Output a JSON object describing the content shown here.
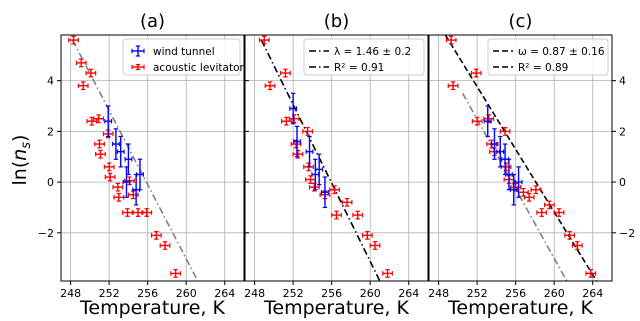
{
  "chart_data": [
    {
      "type": "scatter",
      "title": "(a)",
      "xlabel": "Temperature, K",
      "ylabel": "ln(n_s)",
      "xlim": [
        247,
        266
      ],
      "ylim": [
        -3.9,
        5.8
      ],
      "x_ticks": [
        "248",
        "252",
        "256",
        "260",
        "264"
      ],
      "y_ticks": [
        "4",
        "2",
        "0",
        "−2"
      ],
      "grid": true,
      "legend": {
        "position": "top-right",
        "entries": [
          "wind tunnel",
          "acoustic levitator"
        ]
      },
      "series": [
        {
          "name": "wind tunnel",
          "color": "#0000ff",
          "points": [
            {
              "x": 251.9,
              "y": 2.4,
              "xerr": 0.35,
              "yerr": 0.6
            },
            {
              "x": 252.7,
              "y": 1.5,
              "xerr": 0.35,
              "yerr": 0.6
            },
            {
              "x": 253.2,
              "y": 1.2,
              "xerr": 0.35,
              "yerr": 0.6
            },
            {
              "x": 253.8,
              "y": 0.0,
              "xerr": 0.35,
              "yerr": 0.6
            },
            {
              "x": 254.0,
              "y": 0.9,
              "xerr": 0.35,
              "yerr": 0.6
            },
            {
              "x": 254.8,
              "y": -0.3,
              "xerr": 0.35,
              "yerr": 0.6
            },
            {
              "x": 255.2,
              "y": 0.3,
              "xerr": 0.35,
              "yerr": 0.6
            }
          ]
        },
        {
          "name": "acoustic levitator",
          "color": "#ff0000",
          "points": [
            {
              "x": 248.3,
              "y": 5.6,
              "xerr": 0.5,
              "yerr": 0.15
            },
            {
              "x": 249.1,
              "y": 4.7,
              "xerr": 0.5,
              "yerr": 0.15
            },
            {
              "x": 249.3,
              "y": 3.8,
              "xerr": 0.5,
              "yerr": 0.15
            },
            {
              "x": 250.1,
              "y": 4.3,
              "xerr": 0.5,
              "yerr": 0.15
            },
            {
              "x": 250.2,
              "y": 2.4,
              "xerr": 0.5,
              "yerr": 0.15
            },
            {
              "x": 250.9,
              "y": 2.5,
              "xerr": 0.5,
              "yerr": 0.15
            },
            {
              "x": 251.0,
              "y": 1.5,
              "xerr": 0.5,
              "yerr": 0.15
            },
            {
              "x": 251.1,
              "y": 1.1,
              "xerr": 0.5,
              "yerr": 0.15
            },
            {
              "x": 251.9,
              "y": 1.9,
              "xerr": 0.5,
              "yerr": 0.15
            },
            {
              "x": 252.0,
              "y": 0.6,
              "xerr": 0.5,
              "yerr": 0.15
            },
            {
              "x": 252.1,
              "y": 0.2,
              "xerr": 0.5,
              "yerr": 0.15
            },
            {
              "x": 252.9,
              "y": -0.2,
              "xerr": 0.5,
              "yerr": 0.15
            },
            {
              "x": 253.0,
              "y": -0.6,
              "xerr": 0.5,
              "yerr": 0.15
            },
            {
              "x": 253.9,
              "y": -1.2,
              "xerr": 0.5,
              "yerr": 0.15
            },
            {
              "x": 254.1,
              "y": 0.05,
              "xerr": 0.5,
              "yerr": 0.15
            },
            {
              "x": 254.5,
              "y": -0.5,
              "xerr": 0.5,
              "yerr": 0.15
            },
            {
              "x": 255.0,
              "y": -1.2,
              "xerr": 0.5,
              "yerr": 0.15
            },
            {
              "x": 255.9,
              "y": -1.2,
              "xerr": 0.5,
              "yerr": 0.15
            },
            {
              "x": 256.9,
              "y": -2.1,
              "xerr": 0.5,
              "yerr": 0.15
            },
            {
              "x": 257.8,
              "y": -2.5,
              "xerr": 0.5,
              "yerr": 0.15
            },
            {
              "x": 258.9,
              "y": -3.6,
              "xerr": 0.5,
              "yerr": 0.15
            }
          ]
        }
      ],
      "lines": [
        {
          "style": "dash-dot",
          "color": "#808080",
          "x": [
            248.2,
            261.2
          ],
          "y": [
            5.6,
            -3.9
          ]
        }
      ]
    },
    {
      "type": "scatter",
      "title": "(b)",
      "xlabel": "Temperature, K",
      "xlim": [
        247,
        266
      ],
      "ylim": [
        -3.9,
        5.8
      ],
      "x_ticks": [
        "248",
        "252",
        "256",
        "260",
        "264"
      ],
      "grid": true,
      "legend": {
        "position": "top-right",
        "entries": [
          "λ = 1.46 ± 0.2",
          "R² = 0.91"
        ]
      },
      "series": [
        {
          "color": "#0000ff",
          "points": [
            {
              "x": 252.0,
              "y": 2.9,
              "xerr": 0.35,
              "yerr": 0.6
            },
            {
              "x": 252.4,
              "y": 1.6,
              "xerr": 0.35,
              "yerr": 0.6
            },
            {
              "x": 253.7,
              "y": 1.2,
              "xerr": 0.35,
              "yerr": 0.6
            },
            {
              "x": 254.3,
              "y": 0.3,
              "xerr": 0.35,
              "yerr": 0.6
            },
            {
              "x": 254.7,
              "y": 0.5,
              "xerr": 0.35,
              "yerr": 0.6
            },
            {
              "x": 255.3,
              "y": -0.4,
              "xerr": 0.35,
              "yerr": 0.6
            }
          ]
        },
        {
          "color": "#ff0000",
          "points": [
            {
              "x": 249.0,
              "y": 5.6,
              "xerr": 0.5,
              "yerr": 0.15
            },
            {
              "x": 249.6,
              "y": 3.8,
              "xerr": 0.5,
              "yerr": 0.15
            },
            {
              "x": 251.2,
              "y": 4.3,
              "xerr": 0.5,
              "yerr": 0.15
            },
            {
              "x": 251.3,
              "y": 2.4,
              "xerr": 0.5,
              "yerr": 0.15
            },
            {
              "x": 252.1,
              "y": 2.5,
              "xerr": 0.5,
              "yerr": 0.15
            },
            {
              "x": 252.3,
              "y": 1.5,
              "xerr": 0.5,
              "yerr": 0.15
            },
            {
              "x": 252.5,
              "y": 1.1,
              "xerr": 0.5,
              "yerr": 0.15
            },
            {
              "x": 253.5,
              "y": 2.0,
              "xerr": 0.5,
              "yerr": 0.15
            },
            {
              "x": 253.6,
              "y": 0.6,
              "xerr": 0.5,
              "yerr": 0.15
            },
            {
              "x": 253.8,
              "y": 0.1,
              "xerr": 0.5,
              "yerr": 0.15
            },
            {
              "x": 254.2,
              "y": -0.2,
              "xerr": 0.5,
              "yerr": 0.15
            },
            {
              "x": 255.3,
              "y": -0.5,
              "xerr": 0.5,
              "yerr": 0.15
            },
            {
              "x": 256.3,
              "y": -0.3,
              "xerr": 0.5,
              "yerr": 0.15
            },
            {
              "x": 256.5,
              "y": -1.3,
              "xerr": 0.5,
              "yerr": 0.15
            },
            {
              "x": 257.6,
              "y": -0.8,
              "xerr": 0.5,
              "yerr": 0.15
            },
            {
              "x": 258.7,
              "y": -1.3,
              "xerr": 0.5,
              "yerr": 0.15
            },
            {
              "x": 259.7,
              "y": -2.1,
              "xerr": 0.5,
              "yerr": 0.15
            },
            {
              "x": 260.5,
              "y": -2.5,
              "xerr": 0.5,
              "yerr": 0.15
            },
            {
              "x": 261.8,
              "y": -3.6,
              "xerr": 0.5,
              "yerr": 0.15
            }
          ]
        }
      ],
      "lines": [
        {
          "style": "dash-dot",
          "color": "#000000",
          "x": [
            248.7,
            261.0
          ],
          "y": [
            5.6,
            -3.9
          ]
        }
      ]
    },
    {
      "type": "scatter",
      "title": "(c)",
      "xlabel": "Temperature, K",
      "ylabel_side": "right",
      "xlim": [
        247,
        266
      ],
      "ylim": [
        -3.9,
        5.8
      ],
      "x_ticks": [
        "248",
        "252",
        "256",
        "260",
        "264"
      ],
      "y_ticks": [
        "4",
        "2",
        "0",
        "−2"
      ],
      "grid": true,
      "legend": {
        "position": "top-right",
        "entries": [
          "ω = 0.87 ± 0.16",
          "R² = 0.89"
        ]
      },
      "series": [
        {
          "color": "#0000ff",
          "points": [
            {
              "x": 253.1,
              "y": 2.4,
              "xerr": 0.35,
              "yerr": 0.6
            },
            {
              "x": 253.8,
              "y": 1.5,
              "xerr": 0.35,
              "yerr": 0.6
            },
            {
              "x": 254.4,
              "y": 1.2,
              "xerr": 0.35,
              "yerr": 0.6
            },
            {
              "x": 254.9,
              "y": 0.9,
              "xerr": 0.35,
              "yerr": 0.6
            },
            {
              "x": 255.3,
              "y": 0.3,
              "xerr": 0.35,
              "yerr": 0.6
            },
            {
              "x": 255.8,
              "y": -0.3,
              "xerr": 0.35,
              "yerr": 0.6
            },
            {
              "x": 256.3,
              "y": 0.0,
              "xerr": 0.35,
              "yerr": 0.6
            }
          ]
        },
        {
          "color": "#ff0000",
          "points": [
            {
              "x": 249.3,
              "y": 5.6,
              "xerr": 0.5,
              "yerr": 0.15
            },
            {
              "x": 249.5,
              "y": 3.8,
              "xerr": 0.5,
              "yerr": 0.15
            },
            {
              "x": 251.9,
              "y": 4.3,
              "xerr": 0.5,
              "yerr": 0.15
            },
            {
              "x": 252.0,
              "y": 2.4,
              "xerr": 0.5,
              "yerr": 0.15
            },
            {
              "x": 253.2,
              "y": 2.5,
              "xerr": 0.5,
              "yerr": 0.15
            },
            {
              "x": 253.5,
              "y": 1.5,
              "xerr": 0.5,
              "yerr": 0.15
            },
            {
              "x": 253.8,
              "y": 1.2,
              "xerr": 0.5,
              "yerr": 0.15
            },
            {
              "x": 254.9,
              "y": 2.0,
              "xerr": 0.5,
              "yerr": 0.15
            },
            {
              "x": 255.0,
              "y": 0.6,
              "xerr": 0.5,
              "yerr": 0.15
            },
            {
              "x": 255.3,
              "y": 0.1,
              "xerr": 0.5,
              "yerr": 0.15
            },
            {
              "x": 256.0,
              "y": -0.2,
              "xerr": 0.5,
              "yerr": 0.15
            },
            {
              "x": 256.8,
              "y": -0.4,
              "xerr": 0.5,
              "yerr": 0.15
            },
            {
              "x": 257.4,
              "y": -0.6,
              "xerr": 0.5,
              "yerr": 0.15
            },
            {
              "x": 258.1,
              "y": -0.3,
              "xerr": 0.5,
              "yerr": 0.15
            },
            {
              "x": 258.7,
              "y": -1.2,
              "xerr": 0.5,
              "yerr": 0.15
            },
            {
              "x": 259.5,
              "y": -0.9,
              "xerr": 0.5,
              "yerr": 0.15
            },
            {
              "x": 260.5,
              "y": -1.2,
              "xerr": 0.5,
              "yerr": 0.15
            },
            {
              "x": 261.6,
              "y": -2.1,
              "xerr": 0.5,
              "yerr": 0.15
            },
            {
              "x": 262.4,
              "y": -2.5,
              "xerr": 0.5,
              "yerr": 0.15
            },
            {
              "x": 263.8,
              "y": -3.6,
              "xerr": 0.5,
              "yerr": 0.15
            }
          ]
        }
      ],
      "lines": [
        {
          "style": "dashed",
          "color": "#000000",
          "x": [
            248.7,
            264.4
          ],
          "y": [
            5.8,
            -3.9
          ]
        },
        {
          "style": "dash-dot",
          "color": "#808080",
          "x": [
            250.5,
            261.3
          ],
          "y": [
            3.5,
            -3.9
          ]
        }
      ]
    }
  ]
}
